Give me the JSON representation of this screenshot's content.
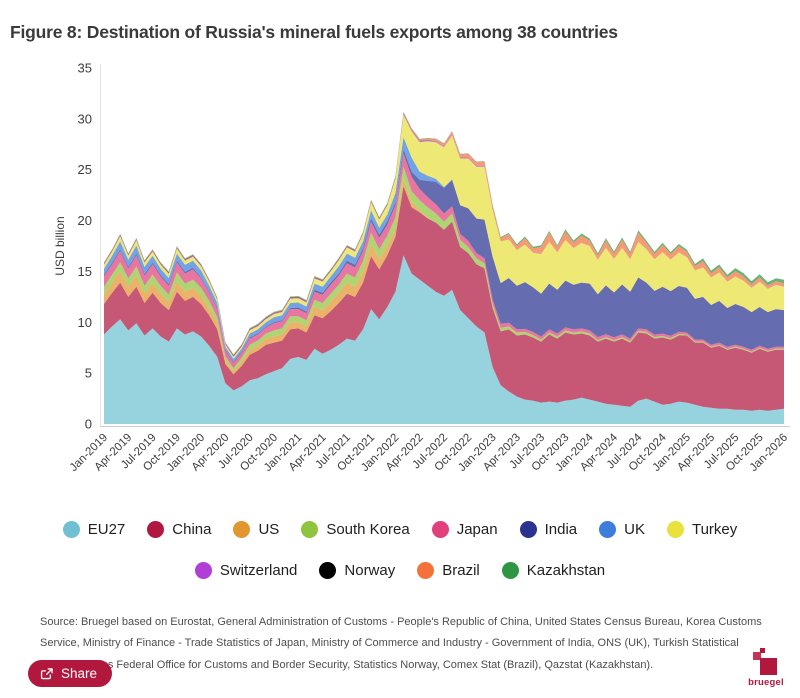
{
  "title": "Figure 8: Destination of Russia's mineral fuels exports among 38 countries",
  "source": "Source: Bruegel based on Eurostat, General Administration of Customs - People's Republic of China, United States Census Bureau, Korea Customs Service, Ministry of Finance - Trade Statistics of Japan, Ministry of Commerce and Industry - Government of India, ONS (UK), Turkish Statistical Institute, Swiss Federal Office for Customs and Border Security, Statistics Norway, Comex Stat (Brazil), Qazstat (Kazakhstan).",
  "share": {
    "label": "Share",
    "icon": "share-export-icon"
  },
  "logo": {
    "text": "bruegel"
  },
  "colors": {
    "accent": "#b2183e",
    "axis_text": "#3c3c3c",
    "axis_line": "#cccccc"
  },
  "chart_data": {
    "type": "area",
    "stacked": true,
    "title": "Figure 8: Destination of Russia's mineral fuels exports among 38 countries",
    "xlabel": "",
    "ylabel": "USD billion",
    "ylim": [
      0,
      35
    ],
    "y_ticks": [
      0,
      5,
      10,
      15,
      20,
      25,
      30,
      35
    ],
    "grid": false,
    "legend_position": "bottom",
    "fill_opacity": 0.72,
    "x_monthly_range": [
      "Jan-2019",
      "Jan-2026"
    ],
    "x_ticks": [
      "Jan-2019",
      "Apr-2019",
      "Jul-2019",
      "Oct-2019",
      "Jan-2020",
      "Apr-2020",
      "Jul-2020",
      "Oct-2020",
      "Jan-2021",
      "Apr-2021",
      "Jul-2021",
      "Oct-2021",
      "Jan-2022",
      "Apr-2022",
      "Jul-2022",
      "Oct-2022",
      "Jan-2023",
      "Apr-2023",
      "Jul-2023",
      "Oct-2023",
      "Jan-2024",
      "Apr-2024",
      "Jul-2024",
      "Oct-2024",
      "Jan-2025",
      "Apr-2025",
      "Jul-2025",
      "Oct-2025",
      "Jan-2026"
    ],
    "x_tick_every_months": 3,
    "series": [
      {
        "name": "EU27",
        "color": "#6fc0d2",
        "values": [
          8.8,
          9.6,
          10.3,
          9.2,
          9.9,
          8.7,
          9.4,
          8.6,
          8.1,
          9.4,
          8.8,
          9.1,
          8.6,
          7.7,
          6.6,
          4.0,
          3.3,
          3.7,
          4.3,
          4.5,
          4.9,
          5.2,
          5.5,
          6.4,
          6.6,
          6.3,
          7.4,
          6.9,
          7.3,
          7.8,
          8.4,
          8.2,
          9.3,
          11.3,
          10.3,
          11.5,
          13.0,
          16.6,
          14.8,
          14.2,
          13.6,
          13.0,
          12.6,
          13.2,
          11.2,
          10.4,
          9.6,
          9.0,
          5.6,
          3.8,
          3.2,
          2.7,
          2.4,
          2.3,
          2.1,
          2.2,
          2.1,
          2.3,
          2.4,
          2.6,
          2.4,
          2.2,
          2.0,
          1.9,
          1.8,
          1.7,
          2.3,
          2.5,
          2.2,
          1.9,
          2.0,
          2.2,
          2.1,
          1.9,
          1.7,
          1.6,
          1.5,
          1.5,
          1.4,
          1.4,
          1.3,
          1.4,
          1.3,
          1.4,
          1.5
        ]
      },
      {
        "name": "China",
        "color": "#b01841",
        "values": [
          3.0,
          3.3,
          3.6,
          3.3,
          3.6,
          3.2,
          3.5,
          3.3,
          3.1,
          3.6,
          3.3,
          3.4,
          3.2,
          3.0,
          2.7,
          1.9,
          1.6,
          2.0,
          2.5,
          2.7,
          2.9,
          2.8,
          2.7,
          2.9,
          2.8,
          2.7,
          3.3,
          3.5,
          3.8,
          4.1,
          4.4,
          4.3,
          4.6,
          5.2,
          4.9,
          5.1,
          5.4,
          6.8,
          6.5,
          6.6,
          6.6,
          6.8,
          6.5,
          6.7,
          6.2,
          6.4,
          6.1,
          6.3,
          5.8,
          5.3,
          6.1,
          6.0,
          6.4,
          6.2,
          6.0,
          6.6,
          6.3,
          6.7,
          6.4,
          6.3,
          6.3,
          5.9,
          6.4,
          6.2,
          6.6,
          6.3,
          6.7,
          6.4,
          6.2,
          6.6,
          6.3,
          6.5,
          6.6,
          6.1,
          6.3,
          5.9,
          6.2,
          5.8,
          6.1,
          5.9,
          5.7,
          6.0,
          5.8,
          5.9,
          5.8
        ]
      },
      {
        "name": "US",
        "color": "#e2962f",
        "values": [
          0.9,
          1.0,
          1.1,
          1.0,
          1.1,
          0.9,
          1.0,
          0.9,
          0.8,
          1.0,
          0.9,
          0.9,
          0.8,
          0.7,
          0.6,
          0.3,
          0.3,
          0.4,
          0.5,
          0.5,
          0.6,
          0.6,
          0.6,
          0.7,
          0.6,
          0.6,
          0.8,
          0.8,
          0.9,
          1.0,
          1.1,
          1.0,
          1.1,
          1.2,
          1.0,
          0.9,
          0.8,
          0.7,
          0.5,
          0.2,
          0.1,
          0,
          0,
          0,
          0,
          0,
          0,
          0,
          0,
          0,
          0,
          0,
          0,
          0,
          0,
          0,
          0,
          0,
          0,
          0,
          0,
          0,
          0,
          0,
          0,
          0,
          0,
          0,
          0,
          0,
          0,
          0,
          0,
          0,
          0,
          0,
          0,
          0,
          0,
          0,
          0,
          0,
          0,
          0,
          0
        ]
      },
      {
        "name": "South Korea",
        "color": "#8fc43e",
        "values": [
          0.8,
          0.8,
          0.9,
          0.8,
          0.9,
          0.8,
          0.8,
          0.8,
          0.7,
          0.9,
          0.8,
          0.8,
          0.8,
          0.7,
          0.6,
          0.4,
          0.3,
          0.4,
          0.5,
          0.5,
          0.5,
          0.6,
          0.6,
          0.6,
          0.6,
          0.6,
          0.7,
          0.7,
          0.8,
          0.8,
          0.9,
          0.9,
          1.0,
          1.1,
          1.0,
          1.0,
          1.1,
          1.2,
          1.1,
          1.0,
          1.0,
          0.9,
          0.8,
          0.8,
          0.7,
          0.6,
          0.6,
          0.5,
          0.4,
          0.35,
          0.3,
          0.3,
          0.25,
          0.25,
          0.2,
          0.2,
          0.2,
          0.2,
          0.2,
          0.2,
          0.2,
          0.15,
          0.15,
          0.15,
          0.15,
          0.15,
          0.15,
          0.15,
          0.15,
          0.15,
          0.15,
          0.15,
          0.1,
          0.1,
          0.1,
          0.1,
          0.1,
          0.1,
          0.1,
          0.1,
          0.1,
          0.1,
          0.1,
          0.1,
          0.1
        ]
      },
      {
        "name": "Japan",
        "color": "#e0417c",
        "values": [
          1.0,
          1.0,
          1.1,
          1.0,
          1.1,
          1.0,
          1.0,
          0.9,
          0.9,
          1.0,
          1.0,
          1.0,
          0.9,
          0.8,
          0.8,
          0.6,
          0.5,
          0.5,
          0.6,
          0.6,
          0.6,
          0.7,
          0.7,
          0.7,
          0.7,
          0.7,
          0.8,
          0.8,
          0.9,
          0.9,
          1.0,
          1.0,
          1.0,
          1.1,
          1.1,
          1.1,
          1.2,
          1.3,
          1.4,
          1.1,
          1.0,
          0.9,
          0.8,
          0.7,
          0.6,
          0.6,
          0.5,
          0.5,
          0.45,
          0.4,
          0.35,
          0.3,
          0.3,
          0.3,
          0.3,
          0.3,
          0.3,
          0.3,
          0.3,
          0.3,
          0.3,
          0.3,
          0.28,
          0.28,
          0.26,
          0.26,
          0.25,
          0.25,
          0.24,
          0.24,
          0.22,
          0.22,
          0.2,
          0.2,
          0.2,
          0.2,
          0.2,
          0.2,
          0.2,
          0.2,
          0.2,
          0.2,
          0.2,
          0.2,
          0.2
        ]
      },
      {
        "name": "India",
        "color": "#2a3390",
        "values": [
          0.15,
          0.15,
          0.15,
          0.15,
          0.15,
          0.15,
          0.15,
          0.15,
          0.15,
          0.15,
          0.15,
          0.15,
          0.1,
          0.1,
          0.1,
          0.1,
          0.1,
          0.1,
          0.1,
          0.1,
          0.1,
          0.1,
          0.1,
          0.1,
          0.15,
          0.15,
          0.2,
          0.2,
          0.2,
          0.2,
          0.25,
          0.25,
          0.25,
          0.3,
          0.3,
          0.3,
          0.3,
          0.4,
          0.5,
          0.9,
          1.6,
          2.2,
          2.5,
          2.6,
          2.8,
          3.2,
          3.4,
          3.8,
          4.2,
          4.0,
          4.4,
          4.3,
          4.6,
          4.4,
          4.2,
          4.5,
          4.3,
          4.6,
          4.4,
          4.5,
          4.6,
          4.2,
          4.8,
          4.4,
          4.9,
          4.6,
          5.0,
          4.6,
          4.3,
          4.6,
          4.4,
          4.5,
          4.4,
          4.0,
          4.2,
          3.9,
          4.1,
          3.8,
          4.0,
          3.9,
          3.7,
          3.8,
          3.6,
          3.7,
          3.6
        ]
      },
      {
        "name": "UK",
        "color": "#3d7edb",
        "values": [
          0.6,
          0.7,
          0.8,
          0.7,
          0.8,
          0.7,
          0.7,
          0.6,
          0.6,
          0.7,
          0.7,
          0.7,
          0.7,
          0.6,
          0.5,
          0.3,
          0.3,
          0.3,
          0.4,
          0.4,
          0.4,
          0.5,
          0.5,
          0.5,
          0.5,
          0.5,
          0.6,
          0.6,
          0.6,
          0.7,
          0.7,
          0.7,
          0.7,
          0.8,
          0.7,
          0.7,
          0.9,
          1.2,
          1.4,
          0.8,
          0.5,
          0.3,
          0.1,
          0.05,
          0,
          0,
          0,
          0,
          0,
          0,
          0,
          0,
          0,
          0,
          0,
          0,
          0,
          0,
          0,
          0,
          0,
          0,
          0,
          0,
          0,
          0,
          0,
          0,
          0,
          0,
          0,
          0,
          0,
          0,
          0,
          0,
          0,
          0,
          0,
          0,
          0,
          0,
          0,
          0,
          0
        ]
      },
      {
        "name": "Turkey",
        "color": "#e8e13e",
        "values": [
          0.4,
          0.4,
          0.5,
          0.4,
          0.5,
          0.4,
          0.4,
          0.4,
          0.4,
          0.5,
          0.4,
          0.4,
          0.4,
          0.4,
          0.3,
          0.2,
          0.2,
          0.2,
          0.3,
          0.3,
          0.3,
          0.3,
          0.3,
          0.4,
          0.4,
          0.4,
          0.5,
          0.5,
          0.5,
          0.6,
          0.6,
          0.6,
          0.7,
          0.8,
          0.8,
          0.9,
          1.4,
          2.2,
          2.6,
          2.9,
          3.4,
          3.6,
          3.9,
          4.3,
          4.6,
          4.9,
          5.1,
          5.2,
          4.6,
          4.1,
          3.8,
          3.5,
          3.7,
          3.4,
          3.9,
          4.1,
          3.7,
          4.0,
          3.6,
          3.9,
          3.7,
          3.4,
          3.7,
          3.3,
          3.6,
          3.2,
          3.5,
          3.3,
          3.1,
          3.4,
          3.1,
          3.3,
          3.0,
          2.8,
          2.9,
          2.7,
          2.8,
          2.6,
          2.7,
          2.6,
          2.4,
          2.5,
          2.3,
          2.4,
          2.3
        ]
      },
      {
        "name": "Switzerland",
        "color": "#b13fd6",
        "values": [
          0.08,
          0.08,
          0.08,
          0.08,
          0.08,
          0.08,
          0.08,
          0.08,
          0.08,
          0.08,
          0.08,
          0.08,
          0.08,
          0.08,
          0.08,
          0.08,
          0.08,
          0.08,
          0.08,
          0.08,
          0.08,
          0.08,
          0.08,
          0.08,
          0.08,
          0.08,
          0.08,
          0.08,
          0.08,
          0.08,
          0.08,
          0.08,
          0.08,
          0.08,
          0.08,
          0.08,
          0.1,
          0.1,
          0.1,
          0.1,
          0.1,
          0.1,
          0.1,
          0.1,
          0.1,
          0.1,
          0.1,
          0.1,
          0.03,
          0.03,
          0.03,
          0.03,
          0.03,
          0.03,
          0.03,
          0.03,
          0.03,
          0.03,
          0.03,
          0.03,
          0.03,
          0.03,
          0.03,
          0.03,
          0.03,
          0.03,
          0.03,
          0.03,
          0.03,
          0.03,
          0.03,
          0.03,
          0.03,
          0.03,
          0.03,
          0.03,
          0.03,
          0.03,
          0.03,
          0.03,
          0.03,
          0.03,
          0.03,
          0.03,
          0.03
        ]
      },
      {
        "name": "Norway",
        "color": "#000000",
        "values": [
          0.06,
          0.06,
          0.06,
          0.06,
          0.06,
          0.06,
          0.06,
          0.06,
          0.06,
          0.06,
          0.06,
          0.06,
          0.06,
          0.06,
          0.06,
          0.06,
          0.06,
          0.06,
          0.06,
          0.06,
          0.06,
          0.06,
          0.06,
          0.06,
          0.06,
          0.06,
          0.06,
          0.06,
          0.06,
          0.06,
          0.06,
          0.06,
          0.06,
          0.06,
          0.06,
          0.06,
          0.05,
          0.05,
          0.04,
          0.03,
          0.02,
          0.01,
          0,
          0,
          0,
          0,
          0,
          0,
          0,
          0,
          0,
          0,
          0,
          0,
          0,
          0,
          0,
          0,
          0,
          0,
          0,
          0,
          0,
          0,
          0,
          0,
          0,
          0,
          0,
          0,
          0,
          0,
          0,
          0,
          0,
          0,
          0,
          0,
          0,
          0,
          0,
          0,
          0,
          0,
          0
        ]
      },
      {
        "name": "Brazil",
        "color": "#f4713c",
        "values": [
          0.05,
          0.05,
          0.05,
          0.05,
          0.05,
          0.05,
          0.05,
          0.05,
          0.05,
          0.05,
          0.05,
          0.05,
          0.05,
          0.05,
          0.05,
          0.05,
          0.05,
          0.05,
          0.05,
          0.05,
          0.05,
          0.05,
          0.05,
          0.05,
          0.05,
          0.05,
          0.05,
          0.05,
          0.05,
          0.05,
          0.05,
          0.05,
          0.05,
          0.05,
          0.05,
          0.05,
          0.08,
          0.1,
          0.1,
          0.15,
          0.15,
          0.2,
          0.25,
          0.3,
          0.3,
          0.35,
          0.35,
          0.4,
          0.4,
          0.3,
          0.5,
          0.4,
          0.6,
          0.4,
          0.7,
          0.9,
          0.5,
          0.8,
          0.5,
          0.7,
          0.5,
          0.4,
          0.7,
          0.5,
          0.8,
          0.5,
          0.9,
          0.6,
          0.5,
          0.7,
          0.5,
          0.6,
          0.5,
          0.4,
          0.6,
          0.4,
          0.5,
          0.4,
          0.5,
          0.4,
          0.3,
          0.4,
          0.3,
          0.3,
          0.3
        ]
      },
      {
        "name": "Kazakhstan",
        "color": "#2e9643",
        "values": [
          0.05,
          0.05,
          0.05,
          0.05,
          0.05,
          0.05,
          0.05,
          0.05,
          0.05,
          0.05,
          0.05,
          0.05,
          0.05,
          0.05,
          0.05,
          0.05,
          0.05,
          0.05,
          0.05,
          0.05,
          0.05,
          0.05,
          0.05,
          0.05,
          0.05,
          0.05,
          0.05,
          0.05,
          0.05,
          0.05,
          0.05,
          0.05,
          0.05,
          0.05,
          0.05,
          0.05,
          0.05,
          0.05,
          0.05,
          0.05,
          0.05,
          0.05,
          0.05,
          0.05,
          0.05,
          0.05,
          0.05,
          0.05,
          0.1,
          0.1,
          0.1,
          0.15,
          0.15,
          0.15,
          0.15,
          0.15,
          0.15,
          0.2,
          0.2,
          0.2,
          0.2,
          0.2,
          0.2,
          0.2,
          0.2,
          0.2,
          0.2,
          0.2,
          0.2,
          0.2,
          0.2,
          0.2,
          0.2,
          0.2,
          0.25,
          0.25,
          0.25,
          0.25,
          0.3,
          0.3,
          0.3,
          0.3,
          0.3,
          0.3,
          0.35
        ]
      }
    ]
  }
}
